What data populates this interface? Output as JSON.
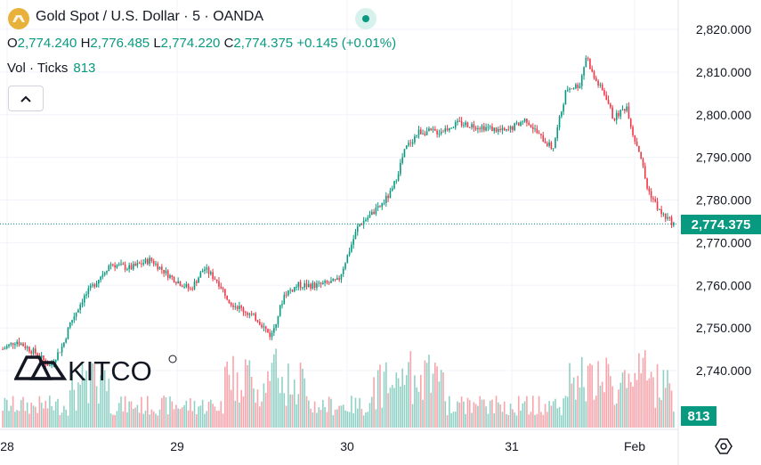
{
  "header": {
    "symbol": "Gold Spot / U.S. Dollar",
    "interval": "5",
    "source": "OANDA",
    "title_sep": " · "
  },
  "ohlc": {
    "o_label": "O",
    "o_value": "2,774.240",
    "h_label": "H",
    "h_value": "2,776.485",
    "l_label": "L",
    "l_value": "2,774.220",
    "c_label": "C",
    "c_value": "2,774.375",
    "change": "+0.145 (+0.01%)"
  },
  "volume": {
    "label": "Vol · Ticks",
    "value": "813"
  },
  "price_tag": "2,774.375",
  "volume_tag": "813",
  "watermark": "KITCO",
  "icons": {
    "collapse": "chevron-up-icon",
    "settings": "gear-icon",
    "logo": "gold-coin-icon",
    "status": "market-open-dot-icon"
  },
  "colors": {
    "up": "#089981",
    "down": "#f23645",
    "accent": "#089981",
    "grid": "#f0f3fa"
  },
  "chart_data": {
    "type": "candlestick",
    "x_ticks": [
      "28",
      "29",
      "30",
      "31",
      "Feb"
    ],
    "y_ticks": [
      "2,820.000",
      "2,810.000",
      "2,800.000",
      "2,790.000",
      "2,780.000",
      "2,770.000",
      "2,760.000",
      "2,750.000",
      "2,740.000"
    ],
    "y_tick_values": [
      2820,
      2810,
      2800,
      2790,
      2780,
      2770,
      2760,
      2750,
      2740
    ],
    "ylim": [
      2738,
      2823
    ],
    "last_price": 2774.375,
    "grid": true,
    "price_path": [
      [
        0,
        2745
      ],
      [
        0.02,
        2747
      ],
      [
        0.05,
        2744
      ],
      [
        0.07,
        2741
      ],
      [
        0.09,
        2746
      ],
      [
        0.1,
        2751
      ],
      [
        0.12,
        2757
      ],
      [
        0.14,
        2761
      ],
      [
        0.16,
        2765
      ],
      [
        0.19,
        2764
      ],
      [
        0.22,
        2766
      ],
      [
        0.25,
        2762
      ],
      [
        0.28,
        2759
      ],
      [
        0.3,
        2764
      ],
      [
        0.32,
        2761
      ],
      [
        0.34,
        2756
      ],
      [
        0.36,
        2754
      ],
      [
        0.38,
        2752
      ],
      [
        0.4,
        2748
      ],
      [
        0.42,
        2758
      ],
      [
        0.44,
        2760
      ],
      [
        0.47,
        2760
      ],
      [
        0.5,
        2761
      ],
      [
        0.53,
        2774
      ],
      [
        0.56,
        2778
      ],
      [
        0.58,
        2782
      ],
      [
        0.6,
        2792
      ],
      [
        0.62,
        2796
      ],
      [
        0.65,
        2796
      ],
      [
        0.68,
        2798
      ],
      [
        0.72,
        2797
      ],
      [
        0.75,
        2796
      ],
      [
        0.78,
        2799
      ],
      [
        0.8,
        2795
      ],
      [
        0.82,
        2792
      ],
      [
        0.84,
        2806
      ],
      [
        0.86,
        2807
      ],
      [
        0.87,
        2814
      ],
      [
        0.88,
        2809
      ],
      [
        0.9,
        2804
      ],
      [
        0.91,
        2799
      ],
      [
        0.93,
        2802
      ],
      [
        0.94,
        2795
      ],
      [
        0.95,
        2791
      ],
      [
        0.96,
        2783
      ],
      [
        0.98,
        2777
      ],
      [
        1.0,
        2774.4
      ]
    ]
  }
}
